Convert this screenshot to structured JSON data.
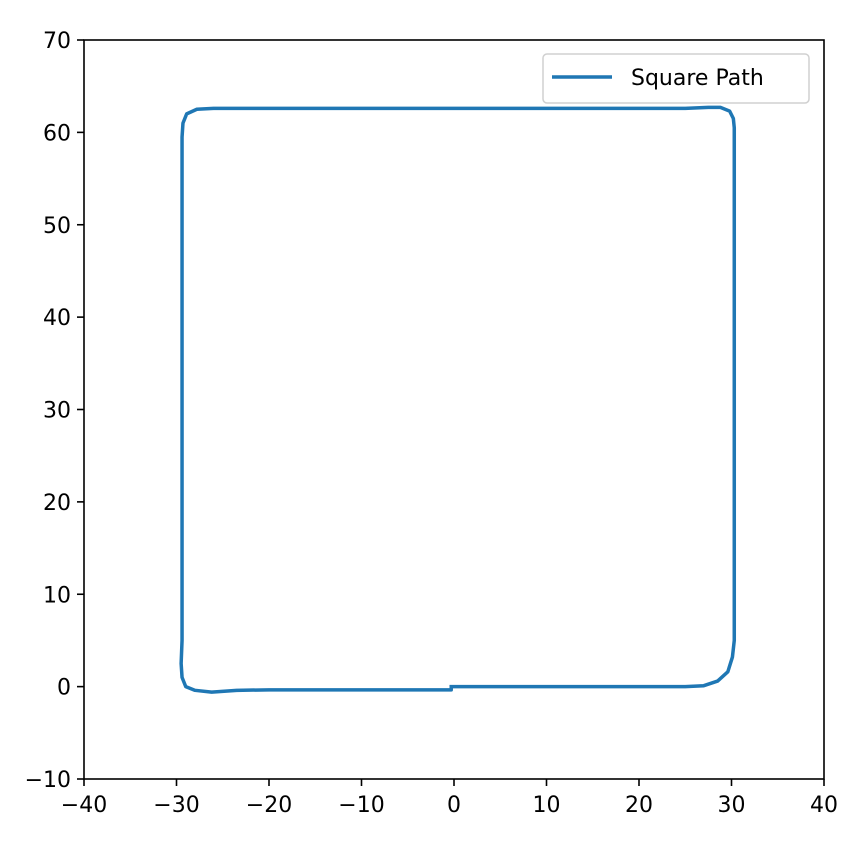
{
  "chart_data": {
    "type": "line",
    "title": "",
    "xlabel": "",
    "ylabel": "",
    "xlim": [
      -40,
      40
    ],
    "ylim": [
      -10,
      70
    ],
    "xticks": [
      -40,
      -30,
      -20,
      -10,
      0,
      10,
      20,
      30,
      40
    ],
    "yticks": [
      -10,
      0,
      10,
      20,
      30,
      40,
      50,
      60,
      70
    ],
    "xtick_labels": [
      "−40",
      "−30",
      "−20",
      "−10",
      "0",
      "10",
      "20",
      "30",
      "40"
    ],
    "ytick_labels": [
      "−10",
      "0",
      "10",
      "20",
      "30",
      "40",
      "50",
      "60",
      "70"
    ],
    "grid": false,
    "legend": {
      "position": "top-right",
      "entries": [
        "Square Path"
      ]
    },
    "series": [
      {
        "name": "Square Path",
        "color": "#1f77b4",
        "x": [
          0,
          5,
          10,
          15,
          20,
          25,
          27,
          28.5,
          29.6,
          30.1,
          30.3,
          30.3,
          30.3,
          30.3,
          30.3,
          30.3,
          30.3,
          30.3,
          30.3,
          30.2,
          29.8,
          28.8,
          27.5,
          25,
          20,
          10,
          0,
          -10,
          -20,
          -26,
          -27.8,
          -28.9,
          -29.3,
          -29.4,
          -29.4,
          -29.4,
          -29.4,
          -29.4,
          -29.4,
          -29.4,
          -29.4,
          -29.5,
          -29.4,
          -29.0,
          -28.0,
          -26.2,
          -23.5,
          -20,
          -10,
          -0.3,
          -0.3
        ],
        "y": [
          0,
          0,
          0,
          0,
          0,
          0,
          0.1,
          0.6,
          1.6,
          3.2,
          5.0,
          10,
          20,
          30,
          40,
          50,
          58,
          60,
          60.5,
          61.5,
          62.3,
          62.7,
          62.7,
          62.6,
          62.6,
          62.6,
          62.6,
          62.6,
          62.6,
          62.6,
          62.5,
          62.0,
          61.0,
          59.5,
          57,
          50,
          40,
          30,
          20,
          10,
          5,
          2.5,
          1.0,
          0.0,
          -0.4,
          -0.6,
          -0.4,
          -0.35,
          -0.35,
          -0.35,
          0
        ]
      }
    ]
  }
}
